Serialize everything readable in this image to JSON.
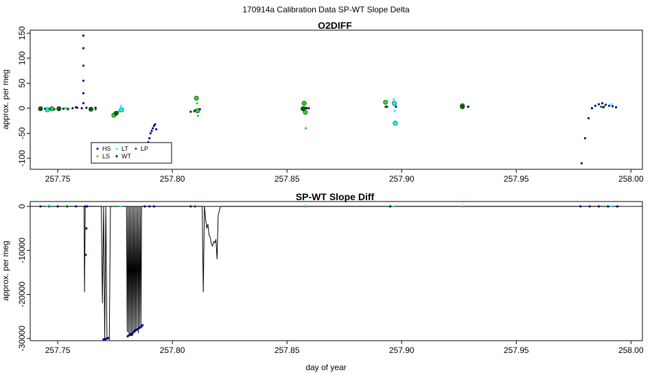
{
  "figure": {
    "suptitle": "170914a   Calibration Data SP-WT Slope Delta",
    "xlabel": "day of year"
  },
  "colors": {
    "HS": "#00008b",
    "LS": "#32cd32",
    "LT": "#00ffff",
    "WT": "#000000",
    "LP": "#006400",
    "line": "#000000"
  },
  "chart_data": [
    {
      "type": "scatter",
      "title": "O2DIFF",
      "xlabel": "",
      "ylabel": "approx. per meg",
      "xlim": [
        257.738,
        258.005
      ],
      "ylim": [
        -122,
        156
      ],
      "xticks": [
        "257.75",
        "257.80",
        "257.85",
        "257.90",
        "257.95",
        "258.00"
      ],
      "yticks": [
        "-100",
        "-50",
        "0",
        "50",
        "100",
        "150"
      ],
      "legend": {
        "position": "bottom-left",
        "entries": [
          "HS",
          "LS",
          "LT",
          "WT",
          "LP"
        ]
      },
      "series": [
        {
          "name": "HS",
          "x": [
            257.7425,
            257.7445,
            257.7465,
            257.7485,
            257.7505,
            257.7525,
            257.7545,
            257.7565,
            257.7585,
            257.7605,
            257.7612,
            257.7612,
            257.7612,
            257.7612,
            257.7612,
            257.7612,
            257.7625,
            257.7645,
            257.7665,
            257.7895,
            257.79,
            257.7905,
            257.791,
            257.7915,
            257.792,
            257.7925,
            257.793,
            257.808,
            257.81,
            257.812,
            257.8575,
            257.8595,
            257.8935,
            257.8975,
            257.9265,
            257.9785,
            257.98,
            257.9815,
            257.983,
            257.9845,
            257.986,
            257.9875,
            257.989,
            257.9905,
            257.992,
            257.9935
          ],
          "y": [
            -1,
            -1,
            -2,
            -2,
            -1,
            -1,
            -2,
            0,
            1,
            0,
            10,
            30,
            55,
            85,
            120,
            145,
            1,
            0,
            1,
            -68,
            -60,
            -50,
            -45,
            -40,
            -35,
            -32,
            -42,
            -7,
            -4,
            -2,
            -1,
            0,
            3,
            3,
            3,
            -110,
            -60,
            -20,
            0,
            5,
            8,
            10,
            7,
            5,
            4,
            2
          ],
          "note": "Dense dark-blue point clusters along y≈0; steep recovery ramps near 257.79 and 257.98."
        },
        {
          "name": "LS",
          "x": [
            257.7475,
            257.7535,
            257.7745,
            257.7765,
            257.8105,
            257.8108,
            257.811,
            257.8112,
            257.8575,
            257.8578,
            257.858,
            257.8582,
            257.893,
            257.8935,
            257.9265,
            257.9885
          ],
          "y": [
            -1,
            0,
            -14,
            -7,
            20,
            10,
            -5,
            -15,
            10,
            2,
            -8,
            -40,
            12,
            3,
            5,
            5
          ]
        },
        {
          "name": "LT",
          "x": [
            257.7455,
            257.7775,
            257.7778,
            257.8965,
            257.8968,
            257.897,
            257.8972,
            257.9915
          ],
          "y": [
            -3,
            5,
            -3,
            18,
            10,
            -5,
            -30,
            8
          ]
        },
        {
          "name": "WT",
          "x": [
            257.758,
            257.8585,
            257.8935,
            257.929,
            257.988
          ],
          "y": [
            2,
            0,
            3,
            3,
            2
          ]
        },
        {
          "name": "LP",
          "x": [
            257.7425,
            257.7465,
            257.7505,
            257.7545,
            257.7645,
            257.7665,
            257.7755,
            257.8095,
            257.857,
            257.893,
            257.9265,
            257.987
          ],
          "y": [
            -1,
            -1,
            -1,
            -1,
            -2,
            -2,
            -10,
            -6,
            -1,
            3,
            3,
            3
          ]
        }
      ]
    },
    {
      "type": "line",
      "title": "SP-WT Slope Diff",
      "xlabel": "day of year",
      "ylabel": "approx. per meg",
      "xlim": [
        257.738,
        258.005
      ],
      "ylim": [
        -30500,
        1100
      ],
      "xticks": [
        "257.75",
        "257.80",
        "257.85",
        "257.90",
        "257.95",
        "258.00"
      ],
      "yticks": [
        "-30000",
        "-20000",
        "-10000",
        "0"
      ],
      "reference_line": 0,
      "series": [
        {
          "name": "",
          "x": [
            257.7425,
            257.7615,
            257.7617,
            257.762,
            257.7622,
            257.764,
            257.769,
            257.7695,
            257.77,
            257.7705,
            257.771,
            257.7715,
            257.772,
            257.7725,
            257.773,
            257.774,
            257.78,
            257.7803,
            257.7806,
            257.7809,
            257.7812,
            257.7815,
            257.7818,
            257.7821,
            257.7824,
            257.7827,
            257.783,
            257.7833,
            257.7836,
            257.7839,
            257.7842,
            257.7845,
            257.7848,
            257.7851,
            257.7854,
            257.7857,
            257.786,
            257.7863,
            257.7866,
            257.787,
            257.795,
            257.813,
            257.8135,
            257.814,
            257.8145,
            257.815,
            257.8155,
            257.816,
            257.8165,
            257.817,
            257.8175,
            257.818,
            257.8185,
            257.819,
            257.8195,
            257.82,
            257.821,
            257.995
          ],
          "y": [
            0,
            0,
            -19500,
            0,
            0,
            0,
            0,
            -22000,
            0,
            -30200,
            0,
            -30000,
            -29800,
            -30200,
            0,
            0,
            0,
            -28500,
            0,
            -28800,
            0,
            -29300,
            0,
            -29000,
            0,
            -29400,
            0,
            -28700,
            0,
            -28600,
            0,
            -28200,
            0,
            -28800,
            0,
            -27800,
            0,
            -27200,
            0,
            0,
            0,
            0,
            -19500,
            0,
            -3000,
            -5000,
            -4000,
            -6500,
            -7000,
            -8500,
            -9000,
            -8000,
            -8300,
            -7500,
            -12000,
            -2000,
            0,
            0
          ]
        },
        {
          "name": "HS",
          "x": [
            257.7425,
            257.746,
            257.75,
            257.754,
            257.758,
            257.762,
            257.7622,
            257.7625,
            257.7628,
            257.77,
            257.7705,
            257.771,
            257.7715,
            257.772,
            257.7805,
            257.781,
            257.7815,
            257.782,
            257.7825,
            257.783,
            257.7835,
            257.784,
            257.7845,
            257.785,
            257.7855,
            257.786,
            257.7865,
            257.787,
            257.788,
            257.79,
            257.792,
            257.808,
            257.81,
            257.858,
            257.895,
            257.978,
            257.982,
            257.986,
            257.99,
            257.994
          ],
          "y": [
            0,
            0,
            0,
            0,
            0,
            0,
            -11000,
            -5000,
            0,
            -30200,
            -30300,
            -30100,
            -30000,
            -29900,
            -29500,
            -29300,
            -29000,
            -29200,
            -28900,
            -28600,
            -28300,
            -28100,
            -28000,
            -27900,
            -27600,
            -27500,
            -27300,
            -27000,
            0,
            0,
            0,
            0,
            0,
            0,
            0,
            0,
            0,
            0,
            0,
            0
          ]
        },
        {
          "name": "LS",
          "x": [
            257.7475,
            257.7535,
            257.7745,
            257.8105,
            257.858,
            257.8935,
            257.927,
            257.9885
          ],
          "y": [
            0,
            0,
            0,
            0,
            0,
            0,
            0,
            0
          ]
        },
        {
          "name": "LT",
          "x": [
            257.7455,
            257.7775,
            257.8965,
            257.9915
          ],
          "y": [
            0,
            0,
            0,
            0
          ]
        }
      ]
    }
  ]
}
